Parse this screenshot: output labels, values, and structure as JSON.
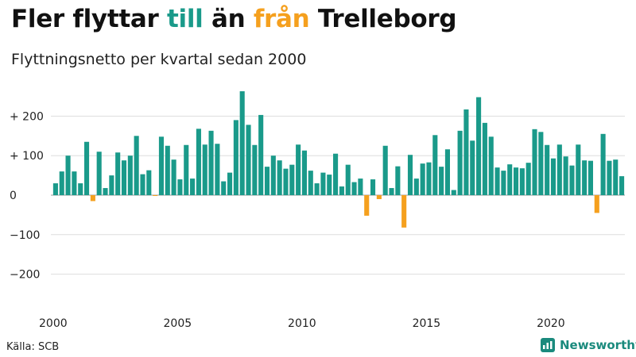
{
  "title": {
    "part1": "Fler flyttar ",
    "highlight_to": "till",
    "part2": " än ",
    "highlight_from": "från",
    "part3": " Trelleborg"
  },
  "subtitle": "Flyttningsnetto per kvartal sedan 2000",
  "source": "Källa: SCB",
  "brand": {
    "name": "Newsworthy",
    "icon": "newsworthy-logo-icon"
  },
  "colors": {
    "positive": "#1a9a8a",
    "negative": "#f5a01e",
    "grid": "#dddddd",
    "zero": "#999999"
  },
  "chart_data": {
    "type": "bar",
    "title": "",
    "xlabel": "",
    "ylabel": "",
    "ylim": [
      -270,
      270
    ],
    "y_ticks": [
      {
        "value": 200,
        "label": "+ 200"
      },
      {
        "value": 100,
        "label": "+ 100"
      },
      {
        "value": 0,
        "label": "0"
      },
      {
        "value": -100,
        "label": "−100"
      },
      {
        "value": -200,
        "label": "−200"
      }
    ],
    "x_ticks": [
      {
        "value": 2000,
        "label": "2000"
      },
      {
        "value": 2005,
        "label": "2005"
      },
      {
        "value": 2010,
        "label": "2010"
      },
      {
        "value": 2015,
        "label": "2015"
      },
      {
        "value": 2020,
        "label": "2020"
      }
    ],
    "start_year": 2000,
    "values": [
      30,
      60,
      100,
      60,
      30,
      135,
      -15,
      110,
      18,
      50,
      108,
      88,
      100,
      150,
      53,
      63,
      -2,
      148,
      125,
      90,
      40,
      127,
      42,
      168,
      128,
      163,
      130,
      35,
      57,
      190,
      263,
      178,
      127,
      203,
      72,
      100,
      88,
      67,
      77,
      128,
      113,
      62,
      30,
      57,
      52,
      105,
      22,
      77,
      33,
      42,
      -52,
      40,
      -10,
      125,
      18,
      73,
      -82,
      102,
      42,
      80,
      83,
      152,
      72,
      116,
      13,
      163,
      217,
      138,
      248,
      183,
      148,
      70,
      62,
      78,
      70,
      68,
      82,
      167,
      160,
      127,
      93,
      128,
      98,
      75,
      128,
      88,
      87,
      -45,
      155,
      87,
      90,
      48
    ]
  }
}
